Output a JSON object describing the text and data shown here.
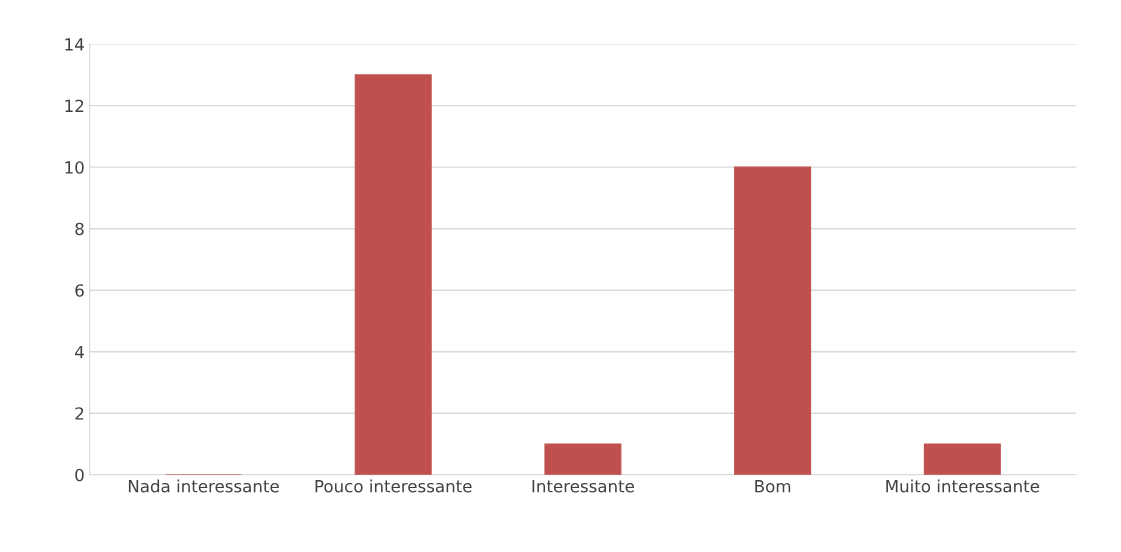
{
  "chart_data": {
    "type": "bar",
    "categories": [
      "Nada interessante",
      "Pouco interessante",
      "Interessante",
      "Bom",
      "Muito interessante"
    ],
    "values": [
      0,
      13,
      1,
      10,
      1
    ],
    "color": "#c0504d",
    "ylim": [
      0,
      14
    ],
    "yticks": [
      0,
      2,
      4,
      6,
      8,
      10,
      12,
      14
    ],
    "grid": "y",
    "legend": false
  }
}
